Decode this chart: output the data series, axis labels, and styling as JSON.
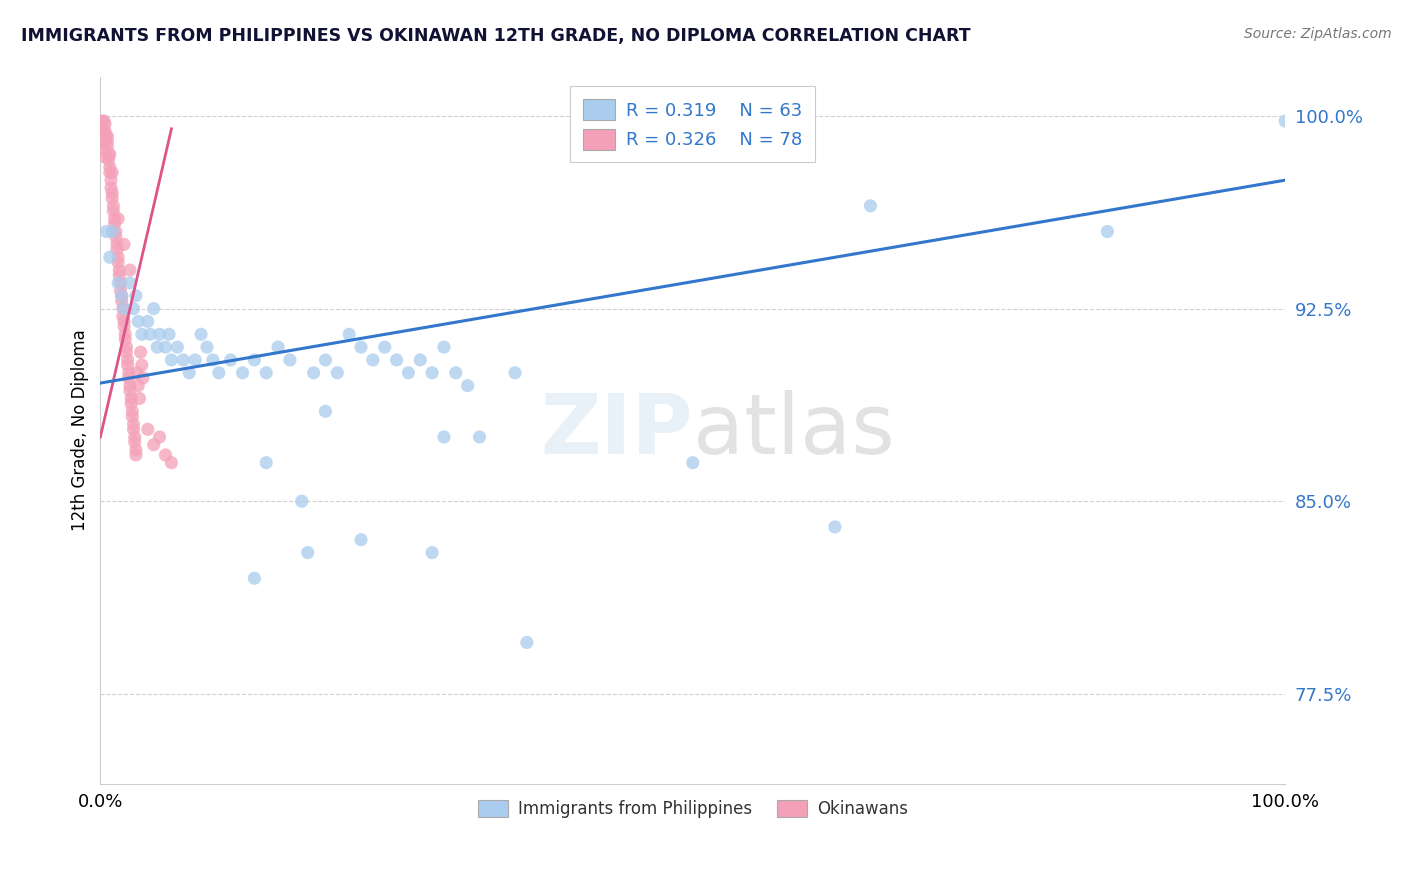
{
  "title": "IMMIGRANTS FROM PHILIPPINES VS OKINAWAN 12TH GRADE, NO DIPLOMA CORRELATION CHART",
  "source": "Source: ZipAtlas.com",
  "ylabel": "12th Grade, No Diploma",
  "legend_label1": "Immigrants from Philippines",
  "legend_label2": "Okinawans",
  "R1": "0.319",
  "N1": "63",
  "R2": "0.326",
  "N2": "78",
  "watermark_zip": "ZIP",
  "watermark_atlas": "atlas",
  "xmin": 0.0,
  "xmax": 1.0,
  "ymin": 0.74,
  "ymax": 1.015,
  "yticks": [
    0.775,
    0.85,
    0.925,
    1.0
  ],
  "ytick_labels": [
    "77.5%",
    "85.0%",
    "92.5%",
    "100.0%"
  ],
  "xtick_labels": [
    "0.0%",
    "100.0%"
  ],
  "xticks": [
    0.0,
    1.0
  ],
  "color_blue": "#aaccee",
  "color_pink": "#f4a0b8",
  "trendline_color": "#3377cc",
  "pink_trendline_color": "#dd5588",
  "blue_trendline_x": [
    0.0,
    1.0
  ],
  "blue_trendline_y": [
    0.896,
    0.975
  ],
  "pink_trendline_x": [
    0.0,
    0.06
  ],
  "pink_trendline_y": [
    0.875,
    0.995
  ],
  "blue_scatter": [
    [
      0.005,
      0.955
    ],
    [
      0.008,
      0.945
    ],
    [
      0.01,
      0.955
    ],
    [
      0.015,
      0.935
    ],
    [
      0.018,
      0.93
    ],
    [
      0.02,
      0.925
    ],
    [
      0.025,
      0.935
    ],
    [
      0.028,
      0.925
    ],
    [
      0.03,
      0.93
    ],
    [
      0.032,
      0.92
    ],
    [
      0.035,
      0.915
    ],
    [
      0.04,
      0.92
    ],
    [
      0.042,
      0.915
    ],
    [
      0.045,
      0.925
    ],
    [
      0.048,
      0.91
    ],
    [
      0.05,
      0.915
    ],
    [
      0.055,
      0.91
    ],
    [
      0.058,
      0.915
    ],
    [
      0.06,
      0.905
    ],
    [
      0.065,
      0.91
    ],
    [
      0.07,
      0.905
    ],
    [
      0.075,
      0.9
    ],
    [
      0.08,
      0.905
    ],
    [
      0.085,
      0.915
    ],
    [
      0.09,
      0.91
    ],
    [
      0.095,
      0.905
    ],
    [
      0.1,
      0.9
    ],
    [
      0.11,
      0.905
    ],
    [
      0.12,
      0.9
    ],
    [
      0.13,
      0.905
    ],
    [
      0.14,
      0.9
    ],
    [
      0.15,
      0.91
    ],
    [
      0.16,
      0.905
    ],
    [
      0.18,
      0.9
    ],
    [
      0.19,
      0.905
    ],
    [
      0.2,
      0.9
    ],
    [
      0.21,
      0.915
    ],
    [
      0.22,
      0.91
    ],
    [
      0.23,
      0.905
    ],
    [
      0.24,
      0.91
    ],
    [
      0.25,
      0.905
    ],
    [
      0.26,
      0.9
    ],
    [
      0.27,
      0.905
    ],
    [
      0.28,
      0.9
    ],
    [
      0.29,
      0.91
    ],
    [
      0.3,
      0.9
    ],
    [
      0.31,
      0.895
    ],
    [
      0.35,
      0.9
    ],
    [
      0.14,
      0.865
    ],
    [
      0.17,
      0.85
    ],
    [
      0.29,
      0.875
    ],
    [
      0.19,
      0.885
    ],
    [
      0.32,
      0.875
    ],
    [
      0.5,
      0.865
    ],
    [
      0.13,
      0.82
    ],
    [
      0.28,
      0.83
    ],
    [
      0.175,
      0.83
    ],
    [
      0.22,
      0.835
    ],
    [
      0.36,
      0.795
    ],
    [
      0.62,
      0.84
    ],
    [
      0.85,
      0.955
    ],
    [
      1.0,
      0.998
    ],
    [
      0.65,
      0.965
    ]
  ],
  "pink_scatter": [
    [
      0.003,
      0.998
    ],
    [
      0.004,
      0.994
    ],
    [
      0.005,
      0.992
    ],
    [
      0.006,
      0.99
    ],
    [
      0.006,
      0.988
    ],
    [
      0.007,
      0.985
    ],
    [
      0.007,
      0.983
    ],
    [
      0.008,
      0.98
    ],
    [
      0.008,
      0.978
    ],
    [
      0.009,
      0.975
    ],
    [
      0.009,
      0.972
    ],
    [
      0.01,
      0.97
    ],
    [
      0.01,
      0.968
    ],
    [
      0.011,
      0.965
    ],
    [
      0.011,
      0.963
    ],
    [
      0.012,
      0.96
    ],
    [
      0.012,
      0.958
    ],
    [
      0.013,
      0.955
    ],
    [
      0.013,
      0.953
    ],
    [
      0.014,
      0.95
    ],
    [
      0.014,
      0.948
    ],
    [
      0.015,
      0.945
    ],
    [
      0.015,
      0.943
    ],
    [
      0.016,
      0.94
    ],
    [
      0.016,
      0.938
    ],
    [
      0.017,
      0.935
    ],
    [
      0.017,
      0.932
    ],
    [
      0.018,
      0.93
    ],
    [
      0.018,
      0.928
    ],
    [
      0.019,
      0.925
    ],
    [
      0.019,
      0.922
    ],
    [
      0.02,
      0.92
    ],
    [
      0.02,
      0.918
    ],
    [
      0.021,
      0.915
    ],
    [
      0.021,
      0.913
    ],
    [
      0.022,
      0.91
    ],
    [
      0.022,
      0.908
    ],
    [
      0.023,
      0.905
    ],
    [
      0.023,
      0.903
    ],
    [
      0.024,
      0.9
    ],
    [
      0.024,
      0.898
    ],
    [
      0.025,
      0.895
    ],
    [
      0.025,
      0.893
    ],
    [
      0.026,
      0.89
    ],
    [
      0.026,
      0.888
    ],
    [
      0.027,
      0.885
    ],
    [
      0.027,
      0.883
    ],
    [
      0.028,
      0.88
    ],
    [
      0.028,
      0.878
    ],
    [
      0.029,
      0.875
    ],
    [
      0.029,
      0.873
    ],
    [
      0.03,
      0.87
    ],
    [
      0.03,
      0.868
    ],
    [
      0.031,
      0.9
    ],
    [
      0.032,
      0.895
    ],
    [
      0.033,
      0.89
    ],
    [
      0.034,
      0.908
    ],
    [
      0.035,
      0.903
    ],
    [
      0.036,
      0.898
    ],
    [
      0.015,
      0.96
    ],
    [
      0.02,
      0.95
    ],
    [
      0.025,
      0.94
    ],
    [
      0.01,
      0.978
    ],
    [
      0.008,
      0.985
    ],
    [
      0.006,
      0.992
    ],
    [
      0.004,
      0.997
    ],
    [
      0.003,
      0.993
    ],
    [
      0.05,
      0.875
    ],
    [
      0.04,
      0.878
    ],
    [
      0.045,
      0.872
    ],
    [
      0.055,
      0.868
    ],
    [
      0.06,
      0.865
    ],
    [
      0.002,
      0.998
    ],
    [
      0.002,
      0.995
    ],
    [
      0.002,
      0.993
    ],
    [
      0.003,
      0.99
    ],
    [
      0.003,
      0.987
    ],
    [
      0.004,
      0.984
    ]
  ],
  "background_color": "#ffffff",
  "grid_color": "#cccccc"
}
